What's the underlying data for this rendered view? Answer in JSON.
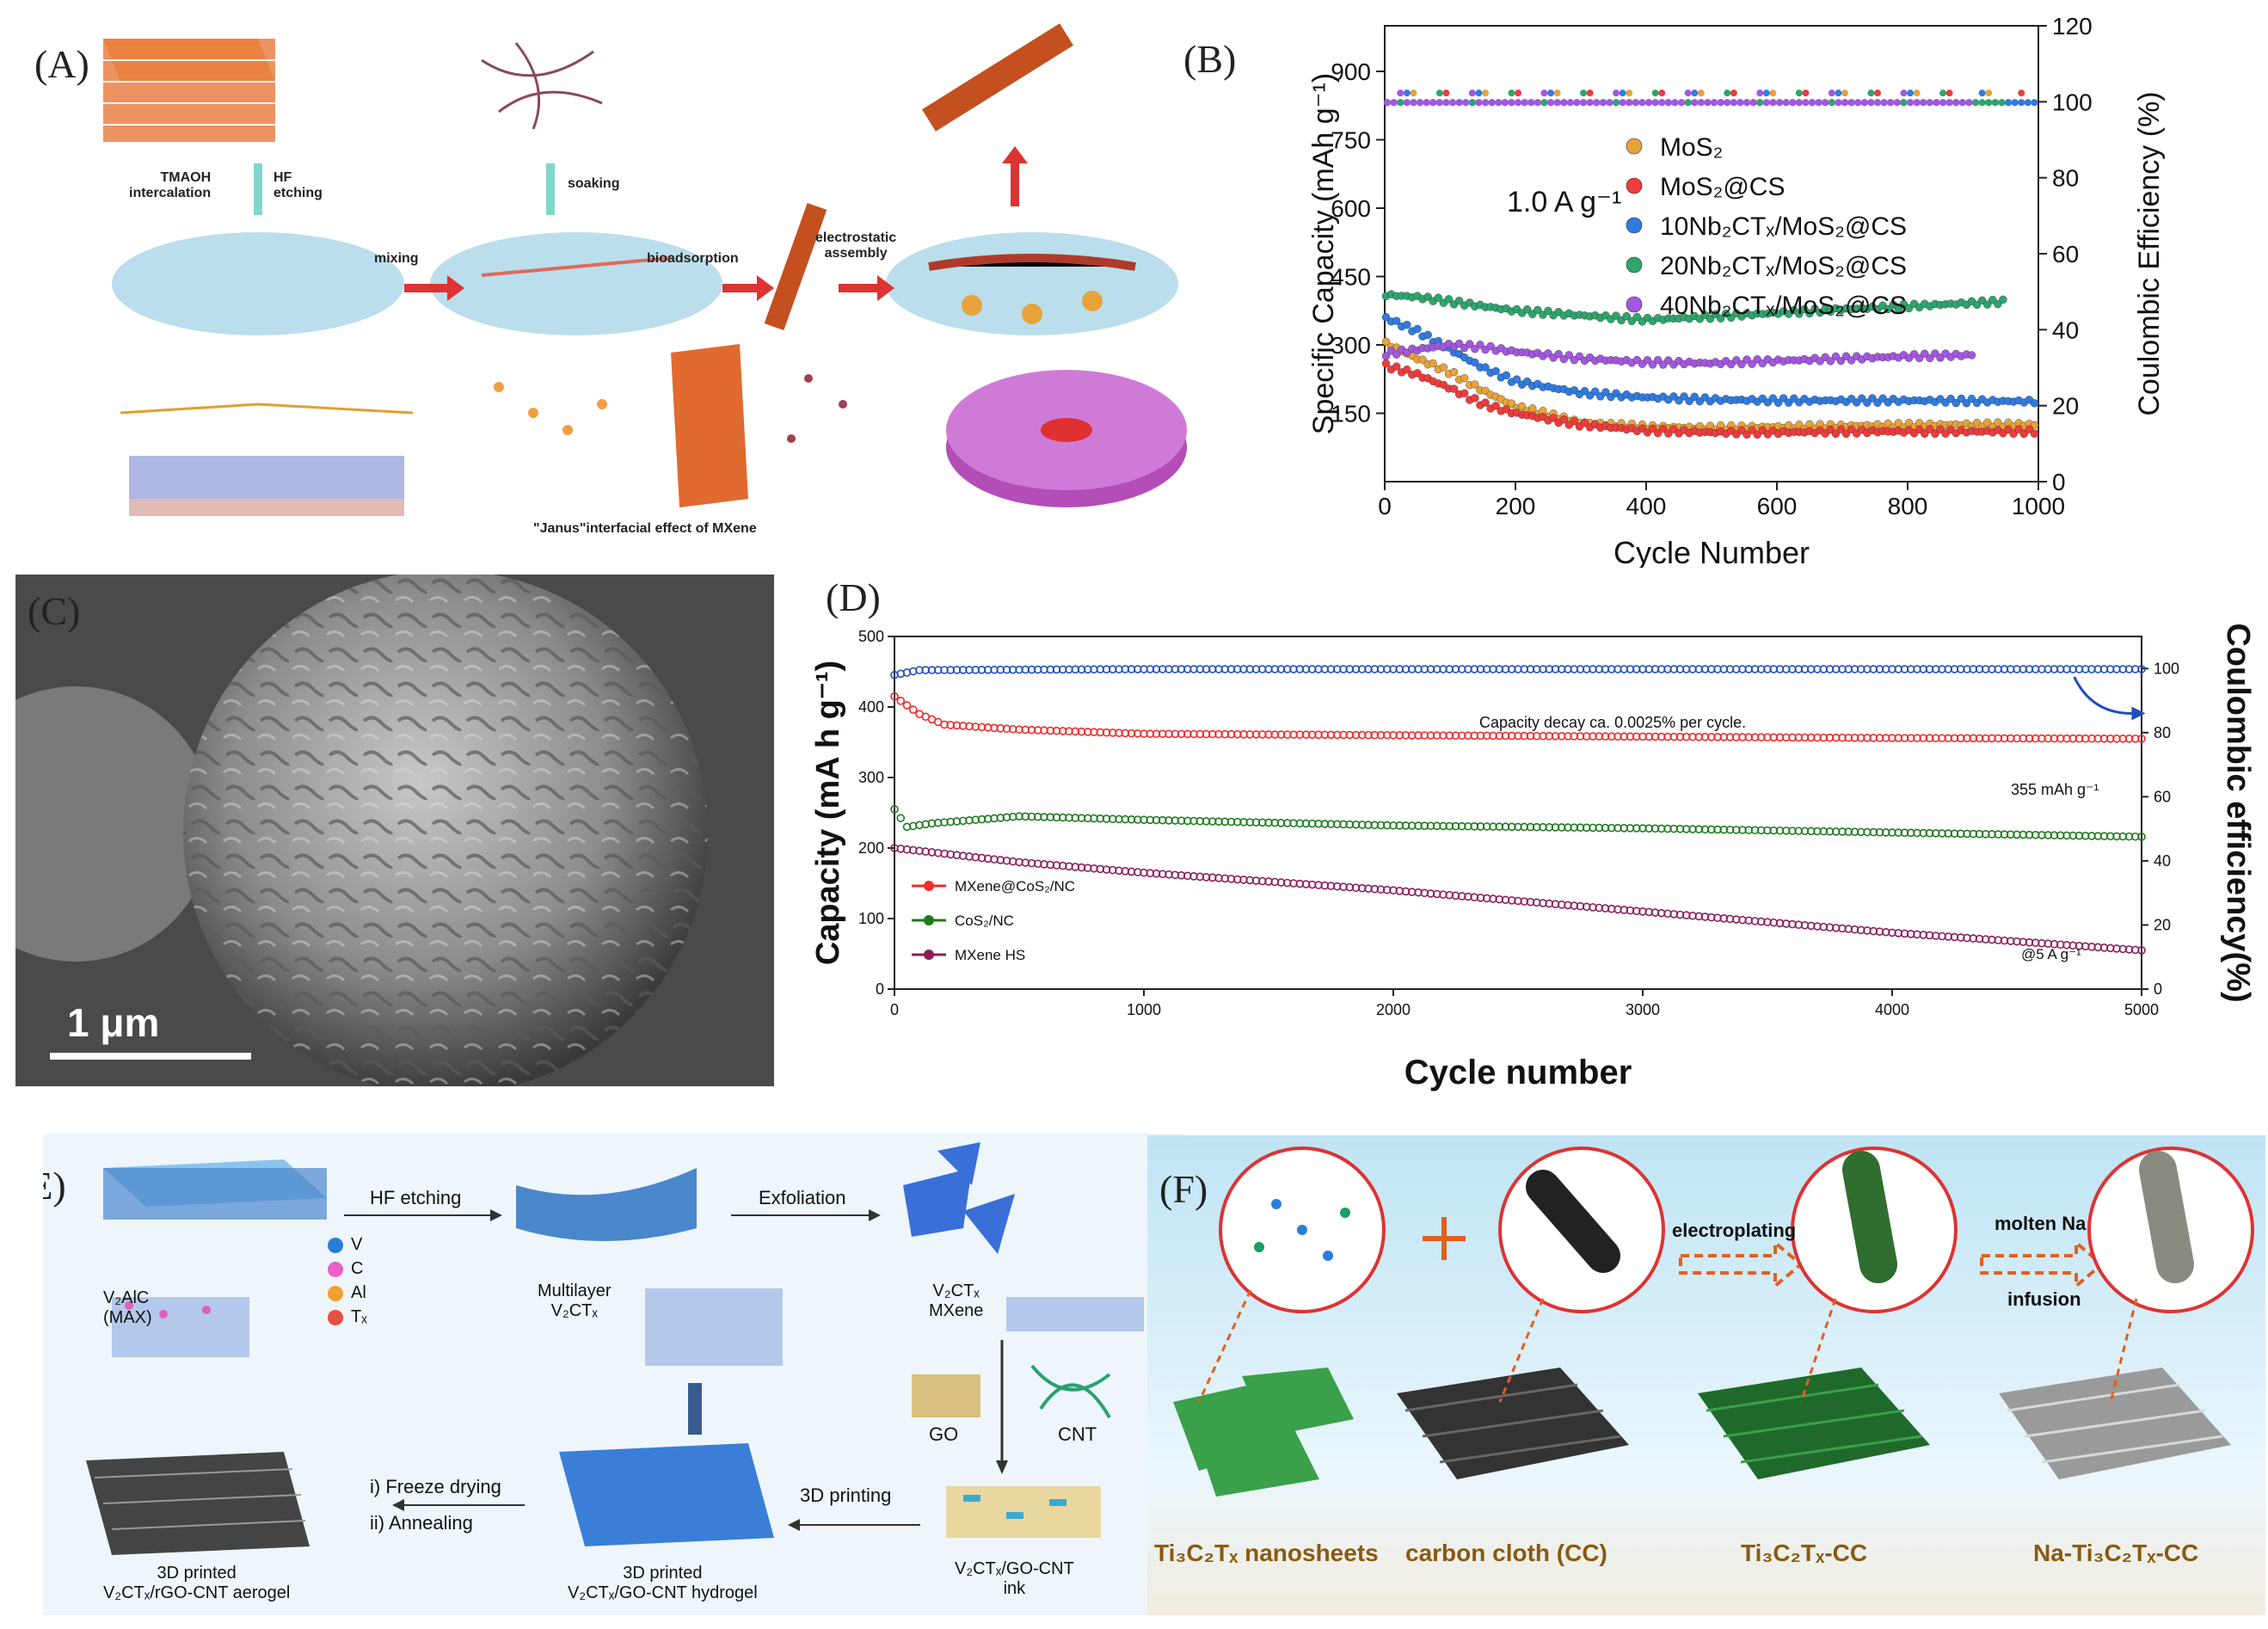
{
  "panels": {
    "A": {
      "label": "(A)",
      "steps": {
        "intercalation": "TMAOH\nintercalation",
        "etching": "HF\netching",
        "soaking": "soaking",
        "mixing": "mixing",
        "bioadsorption": "bioadsorption",
        "electrostatic": "electrostatic\nassembly"
      },
      "caption": "\"Janus\"interfacial effect of MXene"
    },
    "B": {
      "label": "(B)",
      "annotation": "1.0 A g⁻¹",
      "chart_data": {
        "type": "scatter",
        "xlabel": "Cycle Number",
        "ylabel": "Specific Capacity (mAh g⁻¹)",
        "y2label": "Coulombic Efficiency (%)",
        "xlim": [
          0,
          1000
        ],
        "ylim": [
          0,
          1000
        ],
        "y2lim": [
          0,
          120
        ],
        "xticks": [
          0,
          200,
          400,
          600,
          800,
          1000
        ],
        "yticks": [
          150,
          300,
          450,
          600,
          750,
          900
        ],
        "y2ticks": [
          0,
          20,
          40,
          60,
          80,
          100,
          120
        ],
        "legend_position": "top-right",
        "series": [
          {
            "name": "MoS₂",
            "color": "#e8a23a",
            "x": [
              0,
              50,
              100,
              150,
              200,
              300,
              400,
              500,
              600,
              700,
              800,
              900,
              1000
            ],
            "y": [
              305,
              270,
              240,
              200,
              165,
              130,
              120,
              118,
              120,
              122,
              124,
              125,
              125
            ]
          },
          {
            "name": "MoS₂@CS",
            "color": "#ef3b3b",
            "x": [
              0,
              50,
              100,
              150,
              200,
              300,
              400,
              500,
              600,
              700,
              800,
              900,
              1000
            ],
            "y": [
              255,
              235,
              205,
              170,
              150,
              125,
              112,
              108,
              108,
              110,
              110,
              110,
              110
            ]
          },
          {
            "name": "10Nb₂CTₓ/MoS₂@CS",
            "color": "#2f7be0",
            "x": [
              0,
              50,
              100,
              150,
              200,
              300,
              400,
              500,
              600,
              700,
              800,
              900,
              1000
            ],
            "y": [
              360,
              330,
              290,
              250,
              220,
              195,
              185,
              180,
              178,
              178,
              178,
              177,
              176
            ]
          },
          {
            "name": "20Nb₂CTₓ/MoS₂@CS",
            "color": "#2ea56c",
            "x": [
              0,
              50,
              100,
              150,
              200,
              300,
              400,
              500,
              600,
              700,
              800,
              900,
              950
            ],
            "y": [
              410,
              405,
              395,
              385,
              375,
              365,
              355,
              362,
              370,
              378,
              385,
              392,
              395
            ]
          },
          {
            "name": "40Nb₂CTₓ/MoS₂@CS",
            "color": "#a257e0",
            "x": [
              0,
              50,
              100,
              150,
              200,
              300,
              400,
              500,
              600,
              700,
              800,
              900
            ],
            "y": [
              280,
              290,
              300,
              295,
              285,
              270,
              262,
              260,
              265,
              270,
              275,
              278
            ]
          }
        ]
      }
    },
    "C": {
      "label": "(C)",
      "scalebar": "1 μm"
    },
    "D": {
      "label": "(D)",
      "decay_text": "Capacity decay ca. 0.0025% per cycle.",
      "end_value": "355 mAh g⁻¹",
      "rate": "@5 A g⁻¹",
      "chart_data": {
        "type": "line",
        "xlabel": "Cycle number",
        "ylabel": "Capacity (mA h g⁻¹)",
        "y2label": "Coulombic efficiency(%)",
        "xlim": [
          0,
          5000
        ],
        "ylim": [
          0,
          500
        ],
        "y2lim": [
          0,
          110
        ],
        "xticks": [
          0,
          1000,
          2000,
          3000,
          4000,
          5000
        ],
        "yticks": [
          0,
          100,
          200,
          300,
          400,
          500
        ],
        "y2ticks": [
          0,
          20,
          40,
          60,
          80,
          100
        ],
        "legend_position": "bottom-left",
        "series": [
          {
            "name": "MXene@CoS₂/NC",
            "color": "#ee2b2b",
            "x": [
              0,
              100,
              200,
              500,
              1000,
              2000,
              3000,
              4000,
              5000
            ],
            "y": [
              415,
              390,
              375,
              368,
              362,
              360,
              358,
              356,
              355
            ]
          },
          {
            "name": "CoS₂/NC",
            "color": "#1f7a1f",
            "x": [
              0,
              50,
              150,
              500,
              1000,
              2000,
              3000,
              4000,
              5000
            ],
            "y": [
              255,
              230,
              235,
              245,
              240,
              232,
              228,
              222,
              216
            ]
          },
          {
            "name": "MXene HS",
            "color": "#8a1f5a",
            "x": [
              0,
              500,
              1000,
              2000,
              3000,
              4000,
              5000
            ],
            "y": [
              200,
              180,
              165,
              140,
              110,
              80,
              55
            ]
          },
          {
            "name": "Coulombic efficiency",
            "axis": "right",
            "color": "#1f4fb8",
            "x": [
              0,
              100,
              1000,
              2000,
              3000,
              4000,
              5000
            ],
            "y": [
              98,
              99.5,
              99.8,
              99.8,
              99.8,
              99.8,
              99.8
            ]
          }
        ]
      }
    },
    "E": {
      "label": "(E)",
      "max_name": "V₂AlC\n(MAX)",
      "elements": [
        "V",
        "C",
        "Al",
        "Tₓ"
      ],
      "hf": "HF etching",
      "multilayer": "Multilayer\nV₂CTₓ",
      "exfoliation": "Exfoliation",
      "mxene": "V₂CTₓ\nMXene",
      "go": "GO",
      "cnt": "CNT",
      "ink": "V₂CTₓ/GO-CNT\nink",
      "printing": "3D printing",
      "hydrogel": "3D printed\nV₂CTₓ/GO-CNT hydrogel",
      "freeze": "i) Freeze drying",
      "anneal": "ii) Annealing",
      "aerogel": "3D printed\nV₂CTₓ/rGO-CNT aerogel"
    },
    "F": {
      "label": "(F)",
      "electroplating": "electroplating",
      "molten": "molten Na",
      "infusion": "infusion",
      "nanosheets": "Ti₃C₂Tₓ nanosheets",
      "cloth": "carbon cloth (CC)",
      "ticc": "Ti₃C₂Tₓ-CC",
      "naticc": "Na-Ti₃C₂Tₓ-CC"
    }
  }
}
